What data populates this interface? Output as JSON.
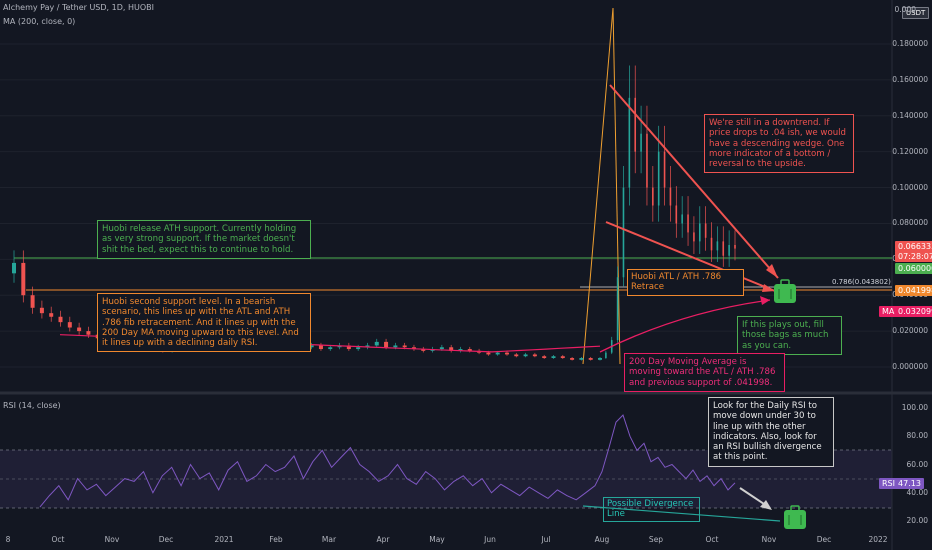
{
  "header": {
    "title": "Alchemy Pay / Tether USD, 1D, HUOBI",
    "ma_label": "MA (200, close, 0)",
    "rsi_label": "RSI (14, close)",
    "currency_badge": "USDT"
  },
  "colors": {
    "background": "#131722",
    "up": "#26a69a",
    "down": "#ef5350",
    "rsi_line": "#7e57c2",
    "ma_line": "#e91e63",
    "support_green": "#4caf50",
    "support_orange": "#f0882e"
  },
  "chart_data": {
    "type": "candlestick",
    "price_axis": {
      "ticks": [
        0.0,
        0.02,
        0.04,
        0.06,
        0.08,
        0.1,
        0.12,
        0.14,
        0.16,
        0.18
      ],
      "tick_labels": [
        "0.000000",
        "0.020000",
        "0.040000",
        "0.060000",
        "0.080000",
        "0.100000",
        "0.120000",
        "0.140000",
        "0.160000",
        "0.180000"
      ]
    },
    "rsi_axis": {
      "ticks": [
        20,
        40,
        60,
        80,
        100
      ],
      "tick_labels": [
        "20.00",
        "40.00",
        "60.00",
        "80.00",
        "100.00"
      ]
    },
    "x_axis": {
      "tick_labels": [
        "8",
        "Oct",
        "Nov",
        "Dec",
        "2021",
        "Feb",
        "Mar",
        "Apr",
        "May",
        "Jun",
        "Jul",
        "Aug",
        "Sep",
        "Oct",
        "Nov",
        "Dec",
        "2022"
      ]
    },
    "price_series_close": [
      0.058,
      0.04,
      0.033,
      0.03,
      0.028,
      0.025,
      0.022,
      0.02,
      0.018,
      0.016,
      0.014,
      0.012,
      0.011,
      0.012,
      0.01,
      0.011,
      0.009,
      0.01,
      0.011,
      0.01,
      0.011,
      0.012,
      0.01,
      0.011,
      0.01,
      0.011,
      0.012,
      0.011,
      0.01,
      0.011,
      0.01,
      0.011,
      0.012,
      0.01,
      0.011,
      0.012,
      0.01,
      0.011,
      0.012,
      0.014,
      0.011,
      0.012,
      0.011,
      0.01,
      0.009,
      0.01,
      0.011,
      0.009,
      0.01,
      0.009,
      0.008,
      0.007,
      0.008,
      0.007,
      0.006,
      0.007,
      0.006,
      0.005,
      0.006,
      0.005,
      0.004,
      0.005,
      0.004,
      0.005,
      0.008,
      0.015,
      0.05,
      0.1,
      0.15,
      0.12,
      0.13,
      0.1,
      0.09,
      0.12,
      0.1,
      0.09,
      0.08,
      0.085,
      0.075,
      0.07,
      0.08,
      0.072,
      0.065,
      0.07,
      0.062,
      0.068,
      0.066
    ],
    "rsi_series": [
      30,
      38,
      45,
      35,
      50,
      42,
      46,
      38,
      44,
      50,
      48,
      55,
      40,
      52,
      58,
      45,
      60,
      50,
      54,
      42,
      56,
      62,
      48,
      52,
      60,
      55,
      58,
      66,
      50,
      62,
      70,
      58,
      65,
      72,
      60,
      55,
      48,
      52,
      60,
      50,
      46,
      55,
      50,
      42,
      48,
      52,
      45,
      50,
      40,
      46,
      42,
      38,
      44,
      40,
      36,
      42,
      38,
      35,
      40,
      45,
      55,
      72,
      90,
      95,
      80,
      70,
      75,
      62,
      65,
      58,
      60,
      55,
      50,
      56,
      48,
      52,
      45,
      50,
      42,
      47
    ],
    "current_price": "0.066333",
    "countdown": "07:28:07",
    "support_green_label": "0.060000",
    "support_orange_label": "0.041998",
    "ma_badge": "MA",
    "ma_value": "0.032099",
    "rsi_badge": "RSI",
    "rsi_value": "47.13",
    "fib_label": "0.786(0.043802)",
    "price_top_label": "0.000"
  },
  "notes": {
    "huobi_ath": "Huobi release ATH support. Currently holding as very strong support. If the market doesn't shit the bed, expect this to continue to hold.",
    "huobi_second": "Huobi second support level. In a bearish scenario, this lines up with the ATL and ATH .786 fib retracement. And it lines up with the 200 Day MA moving upward to this level. And it lines up with a declining daily RSI.",
    "downtrend": "We're still in a downtrend. If price drops to .04 ish, we would have a descending wedge. One more indicator of a bottom / reversal to the upside.",
    "fib_retrace": "Huobi ATL / ATH .786 Retrace",
    "fill_bags": "If this plays out, fill those bags as much as you can.",
    "ma_moving": "200 Day Moving Average is moving toward the ATL / ATH .786 and previous support of .041998.",
    "rsi_look": "Look for the Daily RSI to move down under 30 to line up with the other indicators. Also, look for an RSI bullish divergence at this point.",
    "divergence": "Possible Divergence Line"
  }
}
